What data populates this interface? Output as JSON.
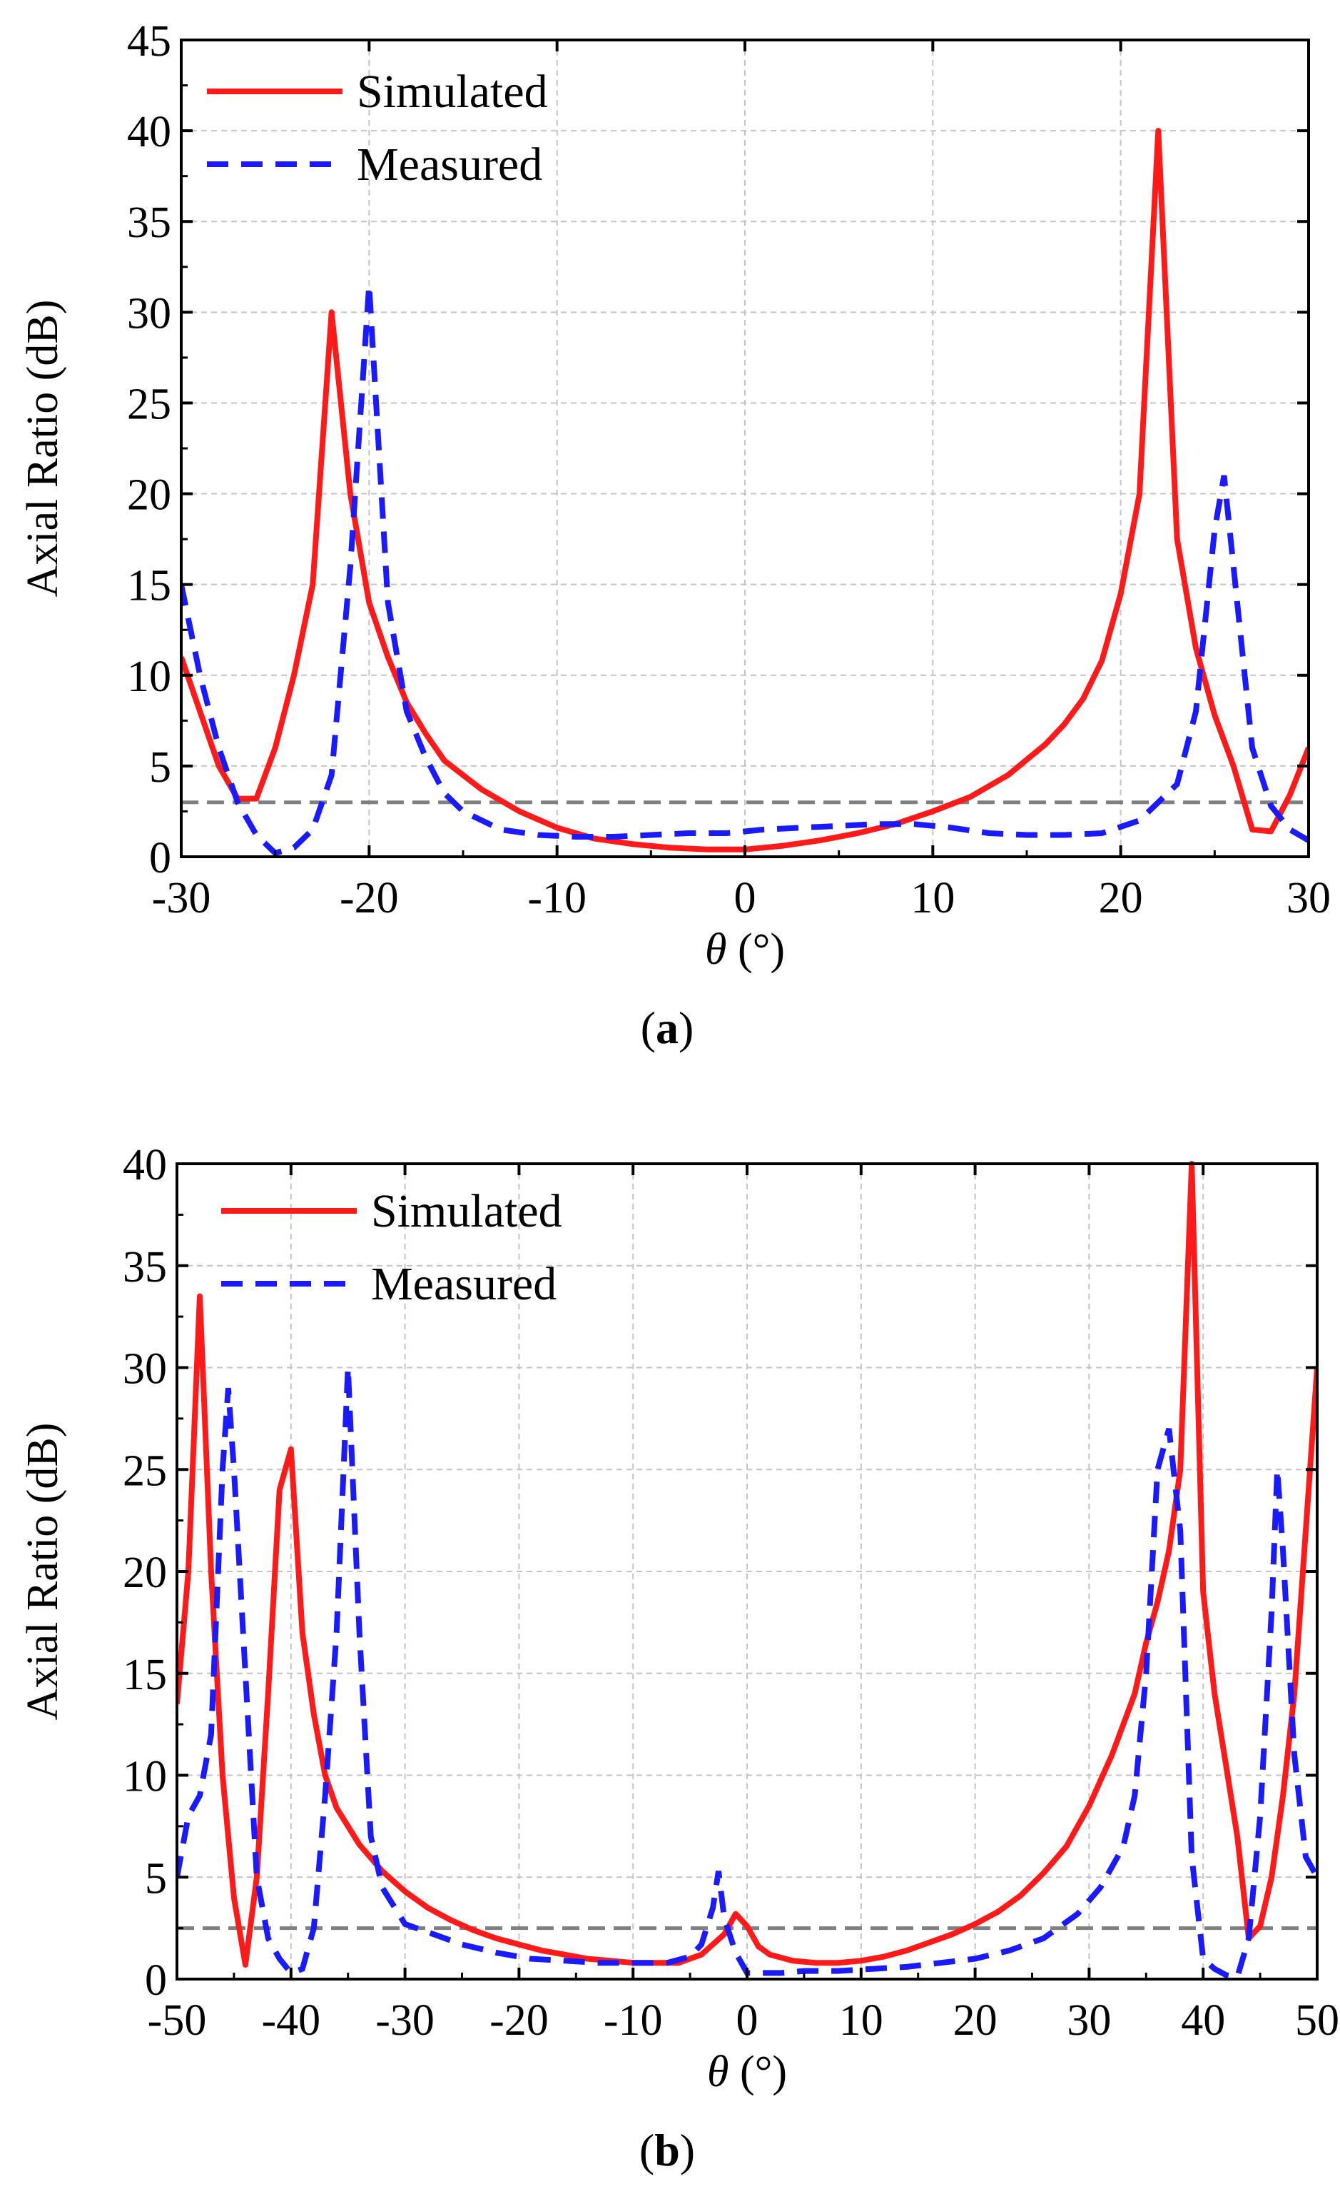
{
  "figures": {
    "a": {
      "caption_label": "a"
    },
    "b": {
      "caption_label": "b"
    }
  },
  "chart_data": [
    {
      "type": "line",
      "panel": "a",
      "title": "",
      "xlabel_symbol": "θ",
      "xlabel_unit": " (°)",
      "ylabel": "Axial Ratio (dB)",
      "xlim": [
        -30,
        30
      ],
      "ylim": [
        0,
        45
      ],
      "xticks": [
        -30,
        -20,
        -10,
        0,
        10,
        20,
        30
      ],
      "yticks": [
        0,
        5,
        10,
        15,
        20,
        25,
        30,
        35,
        40,
        45
      ],
      "grid": true,
      "legend": "top-left",
      "threshold": 3,
      "threshold_color": "#808080",
      "series": [
        {
          "name": "Simulated",
          "color": "#ff1a1a",
          "style": "solid",
          "x": [
            -30,
            -29,
            -28,
            -27,
            -26,
            -25,
            -24,
            -23,
            -22,
            -21,
            -20,
            -19,
            -18,
            -17,
            -16,
            -14,
            -12,
            -10,
            -8,
            -6,
            -4,
            -2,
            0,
            2,
            4,
            6,
            8,
            10,
            12,
            14,
            16,
            17,
            18,
            19,
            20,
            21,
            22,
            23,
            24,
            25,
            26,
            27,
            28,
            29,
            30
          ],
          "y": [
            11,
            8,
            5,
            3.2,
            3.2,
            6,
            10,
            15,
            30,
            20,
            14,
            11,
            8.5,
            6.8,
            5.3,
            3.7,
            2.5,
            1.6,
            1,
            0.7,
            0.5,
            0.4,
            0.4,
            0.6,
            0.9,
            1.3,
            1.8,
            2.5,
            3.3,
            4.5,
            6.2,
            7.3,
            8.7,
            10.8,
            14.5,
            20,
            40,
            17.5,
            11.5,
            7.8,
            5,
            1.5,
            1.4,
            3.4,
            6
          ]
        },
        {
          "name": "Measured",
          "color": "#1a1aff",
          "style": "dashed",
          "x": [
            -30,
            -29,
            -28,
            -27,
            -26,
            -25,
            -24,
            -23,
            -22,
            -21,
            -20,
            -19,
            -18,
            -17,
            -16,
            -15,
            -13,
            -11,
            -9,
            -7,
            -5,
            -3,
            -1,
            1,
            3,
            5,
            7,
            9,
            11,
            13,
            15,
            17,
            19,
            21,
            22,
            23,
            24,
            25,
            25.5,
            26,
            27,
            28,
            29,
            30
          ],
          "y": [
            15,
            10,
            6,
            3,
            1.2,
            0.2,
            0.5,
            1.5,
            4.5,
            16,
            31.5,
            14,
            8,
            5.5,
            3.5,
            2.5,
            1.5,
            1.2,
            1.1,
            1.1,
            1.2,
            1.3,
            1.3,
            1.5,
            1.6,
            1.7,
            1.8,
            1.8,
            1.6,
            1.3,
            1.2,
            1.2,
            1.3,
            2,
            3,
            4,
            8,
            18,
            21,
            16,
            6,
            2.8,
            1.5,
            0.9
          ]
        }
      ]
    },
    {
      "type": "line",
      "panel": "b",
      "title": "",
      "xlabel_symbol": "θ",
      "xlabel_unit": " (°)",
      "ylabel": "Axial Ratio (dB)",
      "xlim": [
        -50,
        50
      ],
      "ylim": [
        0,
        40
      ],
      "xticks": [
        -50,
        -40,
        -30,
        -20,
        -10,
        0,
        10,
        20,
        30,
        40,
        50
      ],
      "yticks": [
        0,
        5,
        10,
        15,
        20,
        25,
        30,
        35,
        40
      ],
      "grid": true,
      "legend": "top-left",
      "threshold": 2.5,
      "threshold_color": "#808080",
      "series": [
        {
          "name": "Simulated",
          "color": "#ff1a1a",
          "style": "solid",
          "x": [
            -50,
            -49,
            -48,
            -47,
            -46,
            -45,
            -44,
            -43,
            -42,
            -41,
            -40,
            -39,
            -38,
            -37,
            -36,
            -34,
            -32,
            -30,
            -28,
            -26,
            -24,
            -22,
            -20,
            -18,
            -16,
            -14,
            -12,
            -10,
            -8,
            -6,
            -4,
            -2,
            -1,
            0,
            1,
            2,
            4,
            6,
            8,
            10,
            12,
            14,
            16,
            18,
            20,
            22,
            24,
            26,
            28,
            30,
            32,
            34,
            35,
            36,
            37,
            38,
            39,
            40,
            41,
            42,
            43,
            44,
            45,
            46,
            47,
            48,
            49,
            50
          ],
          "y": [
            13.5,
            20,
            33.5,
            20,
            10,
            4,
            0.7,
            5,
            14,
            24,
            26,
            17,
            13,
            10,
            8.4,
            6.6,
            5.3,
            4.3,
            3.5,
            2.9,
            2.4,
            2,
            1.7,
            1.4,
            1.2,
            1,
            0.9,
            0.8,
            0.8,
            0.8,
            1.2,
            2.2,
            3.2,
            2.6,
            1.6,
            1.2,
            0.9,
            0.8,
            0.8,
            0.9,
            1.1,
            1.4,
            1.8,
            2.2,
            2.7,
            3.3,
            4.1,
            5.2,
            6.5,
            8.5,
            11,
            14,
            16.5,
            18.5,
            21,
            25,
            40,
            19,
            14,
            10.5,
            7,
            2,
            2.6,
            5,
            9,
            14,
            22,
            30
          ]
        },
        {
          "name": "Measured",
          "color": "#1a1aff",
          "style": "dashed",
          "x": [
            -50,
            -49,
            -48,
            -47,
            -46,
            -45.5,
            -45,
            -44,
            -43,
            -42,
            -41,
            -40,
            -39,
            -38,
            -37,
            -36,
            -35,
            -34,
            -33,
            -32,
            -30,
            -28,
            -25,
            -22,
            -19,
            -16,
            -13,
            -10,
            -7,
            -5,
            -4,
            -3,
            -2.5,
            -2,
            -1,
            0,
            1,
            3,
            5,
            8,
            11,
            14,
            17,
            20,
            23,
            26,
            29,
            31,
            33,
            34,
            35,
            36,
            37,
            38,
            39,
            40,
            41,
            42,
            43,
            44,
            45,
            46,
            46.5,
            47,
            48,
            49,
            50
          ],
          "y": [
            5,
            8,
            9,
            12,
            25,
            29,
            25,
            15,
            5,
            2,
            1,
            0.3,
            0.5,
            2.5,
            9,
            17,
            30,
            17,
            7,
            4.5,
            2.7,
            2.3,
            1.7,
            1.3,
            1,
            0.9,
            0.8,
            0.8,
            0.8,
            1.1,
            1.7,
            3.5,
            5.3,
            3,
            1.3,
            0.3,
            0.3,
            0.3,
            0.4,
            0.4,
            0.5,
            0.6,
            0.8,
            1,
            1.4,
            2,
            3.2,
            4.5,
            6.5,
            9,
            15,
            25,
            27,
            22,
            6,
            1,
            0.5,
            0.2,
            0.1,
            2,
            8,
            18,
            25,
            21,
            11,
            6,
            5
          ]
        }
      ]
    }
  ]
}
